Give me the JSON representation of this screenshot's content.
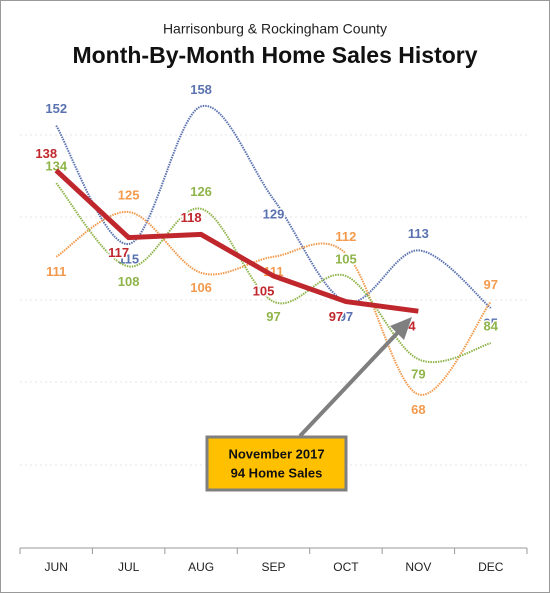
{
  "chart_data": {
    "type": "line",
    "subtitle": "Harrisonburg & Rockingham County",
    "title": "Month-By-Month Home Sales History",
    "categories": [
      "JUN",
      "JUL",
      "AUG",
      "SEP",
      "OCT",
      "NOV",
      "DEC"
    ],
    "series": [
      {
        "color": "#5a72b0",
        "values": [
          152,
          115,
          158,
          129,
          97,
          113,
          95
        ]
      },
      {
        "color": "#f39a4c",
        "values": [
          111,
          125,
          106,
          111,
          112,
          68,
          97
        ]
      },
      {
        "color": "#8fb44a",
        "values": [
          134,
          108,
          126,
          97,
          105,
          79,
          84
        ]
      },
      {
        "color": "#c0272d",
        "values": [
          138,
          117,
          118,
          105,
          97,
          94,
          null
        ]
      }
    ],
    "ylim": [
      20,
      175
    ],
    "annotation": {
      "lines": [
        "November 2017",
        "94 Home Sales"
      ]
    }
  }
}
